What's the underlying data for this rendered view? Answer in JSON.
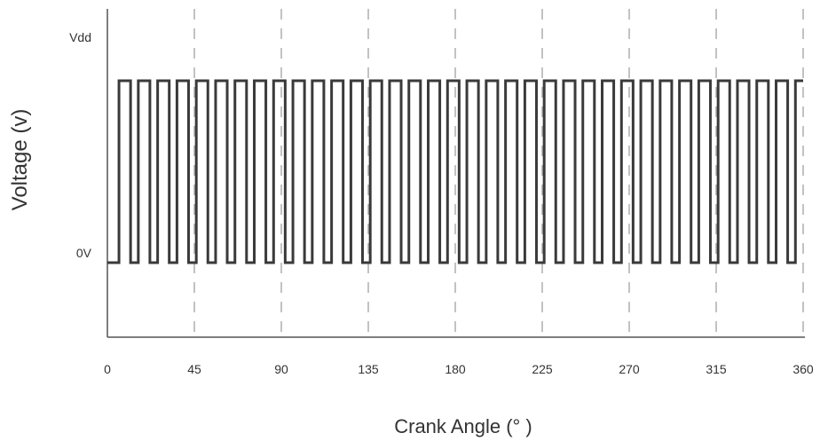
{
  "chart_data": {
    "type": "line",
    "title": "",
    "xlabel": "Crank Angle (°  )",
    "ylabel": "Voltage (v)",
    "xlim": [
      0,
      360
    ],
    "xticks": [
      0,
      45,
      90,
      135,
      180,
      225,
      270,
      315,
      360
    ],
    "xtick_labels": [
      "0",
      "45",
      "90",
      "135",
      "180",
      "225",
      "270",
      "315",
      "360"
    ],
    "ylim": [
      -0.4,
      1.6
    ],
    "yticks": [
      0,
      1.2
    ],
    "ytick_labels": [
      "0V",
      "Vdd"
    ],
    "grid": "vertical dashed at x ticks",
    "series": [
      {
        "waveform": "square",
        "high_value": 1,
        "low_value": 0,
        "pulses": [
          [
            6,
            12
          ],
          [
            16,
            22
          ],
          [
            26,
            32
          ],
          [
            36,
            42
          ],
          [
            46,
            52
          ],
          [
            56,
            62
          ],
          [
            66,
            72
          ],
          [
            76,
            82
          ],
          [
            86,
            92
          ],
          [
            96,
            102
          ],
          [
            106,
            112
          ],
          [
            116,
            122
          ],
          [
            126,
            132
          ],
          [
            136,
            142
          ],
          [
            146,
            152
          ],
          [
            156,
            162
          ],
          [
            166,
            172
          ],
          [
            176,
            182
          ],
          [
            186,
            192
          ],
          [
            196,
            202
          ],
          [
            206,
            212
          ],
          [
            216,
            222
          ],
          [
            226,
            232
          ],
          [
            236,
            242
          ],
          [
            246,
            252
          ],
          [
            256,
            262
          ],
          [
            266,
            272
          ],
          [
            276,
            282
          ],
          [
            286,
            292
          ],
          [
            296,
            302
          ],
          [
            306,
            312
          ],
          [
            316,
            322
          ],
          [
            326,
            332
          ],
          [
            336,
            342
          ],
          [
            346,
            352
          ],
          [
            356,
            360
          ]
        ]
      }
    ]
  },
  "colors": {
    "signal": "#3a3a3a",
    "axis": "#555555",
    "grid": "#9a9a9a",
    "text": "#333333"
  }
}
